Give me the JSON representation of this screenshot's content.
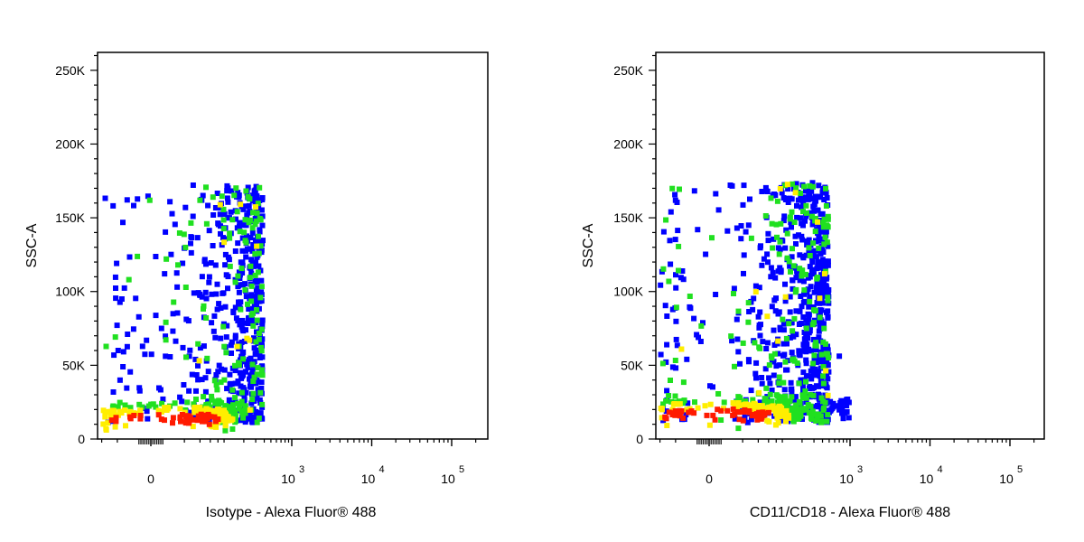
{
  "colors": {
    "low": "#0000ff",
    "mid": "#20e020",
    "high": "#ffee00",
    "peak": "#ff1a00",
    "frame": "#000000"
  },
  "chart_data": [
    {
      "type": "scatter",
      "subtype": "flow-cytometry-density-dot-plot",
      "xlabel": "Isotype - Alexa Fluor® 488",
      "ylabel": "SSC-A",
      "x_scale": "biexponential",
      "y_scale": "linear",
      "ylim": [
        0,
        262144
      ],
      "y_ticks": [
        {
          "value": 0,
          "label": "0"
        },
        {
          "value": 50000,
          "label": "50K"
        },
        {
          "value": 100000,
          "label": "100K"
        },
        {
          "value": 150000,
          "label": "150K"
        },
        {
          "value": 200000,
          "label": "200K"
        },
        {
          "value": 250000,
          "label": "250K"
        }
      ],
      "x_ticks": [
        {
          "value": 0,
          "label": "0",
          "exp": ""
        },
        {
          "value": 1000,
          "label": "10",
          "exp": "3"
        },
        {
          "value": 10000,
          "label": "10",
          "exp": "4"
        },
        {
          "value": 100000,
          "label": "10",
          "exp": "5"
        }
      ],
      "clusters": [
        {
          "x": [
            -70,
            350
          ],
          "y": [
            5000,
            180000
          ],
          "density_peak": {
            "x": 20,
            "y": 15000
          },
          "tail": null
        }
      ]
    },
    {
      "type": "scatter",
      "subtype": "flow-cytometry-density-dot-plot",
      "xlabel": "CD11/CD18 - Alexa Fluor® 488",
      "ylabel": "SSC-A",
      "x_scale": "biexponential",
      "y_scale": "linear",
      "ylim": [
        0,
        262144
      ],
      "y_ticks": [
        {
          "value": 0,
          "label": "0"
        },
        {
          "value": 50000,
          "label": "50K"
        },
        {
          "value": 100000,
          "label": "100K"
        },
        {
          "value": 150000,
          "label": "150K"
        },
        {
          "value": 200000,
          "label": "200K"
        },
        {
          "value": 250000,
          "label": "250K"
        }
      ],
      "x_ticks": [
        {
          "value": 0,
          "label": "0",
          "exp": ""
        },
        {
          "value": 1000,
          "label": "10",
          "exp": "3"
        },
        {
          "value": 10000,
          "label": "10",
          "exp": "4"
        },
        {
          "value": 100000,
          "label": "10",
          "exp": "5"
        }
      ],
      "clusters": [
        {
          "x": [
            -90,
            450
          ],
          "y": [
            5000,
            182000
          ],
          "density_peak": {
            "x": 10,
            "y": 18000
          },
          "tail": {
            "x": [
              400,
              900
            ],
            "y": [
              15000,
              30000
            ]
          }
        }
      ]
    }
  ]
}
